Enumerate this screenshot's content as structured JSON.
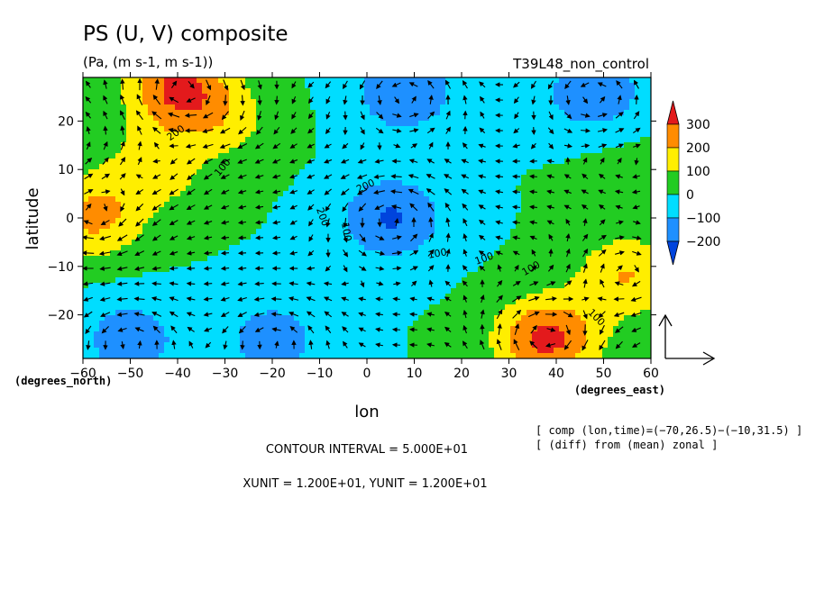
{
  "chart_data": {
    "type": "heatmap",
    "title": "PS (U, V) composite",
    "subtitle": "(Pa, (m s-1, m s-1))",
    "run_label": "T39L48_non_control",
    "xlabel": "lon",
    "ylabel": "latitude",
    "x_unit": "(degrees_east)",
    "y_unit": "(degrees_north)",
    "xlim": [
      -60,
      60
    ],
    "ylim": [
      -29,
      29
    ],
    "x_ticks": [
      "−60",
      "−50",
      "−40",
      "−30",
      "−20",
      "−10",
      "0",
      "10",
      "20",
      "30",
      "40",
      "50",
      "60"
    ],
    "x_tick_values": [
      -60,
      -50,
      -40,
      -30,
      -20,
      -10,
      0,
      10,
      20,
      30,
      40,
      50,
      60
    ],
    "y_ticks": [
      "−20",
      "−10",
      "0",
      "10",
      "20"
    ],
    "y_tick_values": [
      -20,
      -10,
      0,
      10,
      20
    ],
    "colorbar": {
      "labels": [
        "300",
        "200",
        "100",
        "0",
        "−100",
        "−200"
      ],
      "levels": [
        300,
        200,
        100,
        0,
        -100,
        -200
      ],
      "colors": [
        "#e31a1c",
        "#ff8c00",
        "#ffee00",
        "#22cc22",
        "#00ddff",
        "#1e90ff",
        "#0044dd"
      ]
    },
    "contour_labels": [
      "200",
      "100",
      "200",
      "200",
      "100",
      "100",
      "100",
      "100",
      "100"
    ],
    "anomaly_centers": [
      {
        "lon": -40,
        "lat": 27,
        "value": 310
      },
      {
        "lon": -58,
        "lat": 0,
        "value": 220
      },
      {
        "lon": -45,
        "lat": 10,
        "value": 150
      },
      {
        "lon": 38,
        "lat": -25,
        "value": 330
      },
      {
        "lon": 55,
        "lat": -12,
        "value": 200
      },
      {
        "lon": 5,
        "lat": 0,
        "value": -210
      },
      {
        "lon": 8,
        "lat": 26,
        "value": -190
      },
      {
        "lon": 48,
        "lat": 26,
        "value": -180
      },
      {
        "lon": -50,
        "lat": -25,
        "value": -160
      },
      {
        "lon": -20,
        "lat": -25,
        "value": -150
      },
      {
        "lon": -30,
        "lat": 20,
        "value": 120
      },
      {
        "lon": 55,
        "lat": 10,
        "value": 40
      }
    ],
    "reference_vector": {
      "xunit": "1.200E+01",
      "yunit": "1.200E+01"
    }
  },
  "footer": {
    "contour_interval": "CONTOUR INTERVAL = 5.000E+01",
    "units": "XUNIT = 1.200E+01, YUNIT = 1.200E+01",
    "note1": "[ comp (lon,time)=(−70,26.5)−(−10,31.5) ]",
    "note2": "[ (diff) from (mean) zonal ]"
  }
}
